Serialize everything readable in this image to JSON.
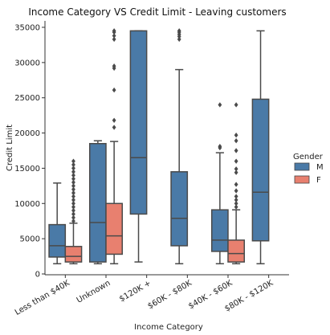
{
  "chart_data": {
    "type": "box",
    "title": "Income Category VS Credit Limit - Leaving customers",
    "xlabel": "Income Category",
    "ylabel": "Credit Limit",
    "ylim": [
      0,
      35000
    ],
    "yticks": [
      0,
      5000,
      10000,
      15000,
      20000,
      25000,
      30000,
      35000
    ],
    "categories": [
      "Less than $40K",
      "Unknown",
      "$120K +",
      "$60K - $80K",
      "$40K - $60K",
      "$80K - $120K"
    ],
    "legend": {
      "title": "Gender",
      "position": "right"
    },
    "series": [
      {
        "name": "M",
        "color": "#4a7aa7",
        "boxes": [
          {
            "category": "Less than $40K",
            "whisker_low": 1450,
            "q1": 2400,
            "median": 4000,
            "q3": 7000,
            "whisker_high": 12900,
            "outliers": []
          },
          {
            "category": "Unknown",
            "whisker_low": 1450,
            "q1": 1700,
            "median": 7300,
            "q3": 18500,
            "whisker_high": 18900,
            "outliers": []
          },
          {
            "category": "$120K +",
            "whisker_low": 1700,
            "q1": 8500,
            "median": 16500,
            "q3": 34500,
            "whisker_high": 34500,
            "outliers": []
          },
          {
            "category": "$60K - $80K",
            "whisker_low": 1450,
            "q1": 4000,
            "median": 7900,
            "q3": 14500,
            "whisker_high": 29000,
            "outliers": [
              33300,
              33700,
              34000,
              34300,
              34500
            ]
          },
          {
            "category": "$40K - $60K",
            "whisker_low": 1450,
            "q1": 3200,
            "median": 4800,
            "q3": 9100,
            "whisker_high": 17200,
            "outliers": [
              17900,
              18100,
              24000
            ]
          },
          {
            "category": "$80K - $120K",
            "whisker_low": 1450,
            "q1": 4700,
            "median": 11600,
            "q3": 24800,
            "whisker_high": 34500,
            "outliers": []
          }
        ]
      },
      {
        "name": "F",
        "color": "#e8806f",
        "boxes": [
          {
            "category": "Less than $40K",
            "whisker_low": 1450,
            "q1": 1700,
            "median": 2500,
            "q3": 3900,
            "whisker_high": 7200,
            "outliers": [
              7500,
              8000,
              8500,
              9000,
              9500,
              10000,
              10500,
              11000,
              11500,
              12000,
              12500,
              13000,
              13500,
              14000,
              14500,
              15000,
              15500,
              16000
            ]
          },
          {
            "category": "Unknown",
            "whisker_low": 1450,
            "q1": 2800,
            "median": 5400,
            "q3": 10000,
            "whisker_high": 18800,
            "outliers": [
              20800,
              21800,
              26100,
              29200,
              29500,
              33300,
              33800,
              34300,
              34500
            ]
          },
          {
            "category": "$40K - $60K",
            "whisker_low": 1450,
            "q1": 1700,
            "median": 2900,
            "q3": 4800,
            "whisker_high": 9100,
            "outliers": [
              9500,
              10000,
              10500,
              11000,
              11800,
              12700,
              14400,
              14900,
              16000,
              17500,
              18900,
              19700,
              24000
            ]
          }
        ]
      }
    ]
  }
}
